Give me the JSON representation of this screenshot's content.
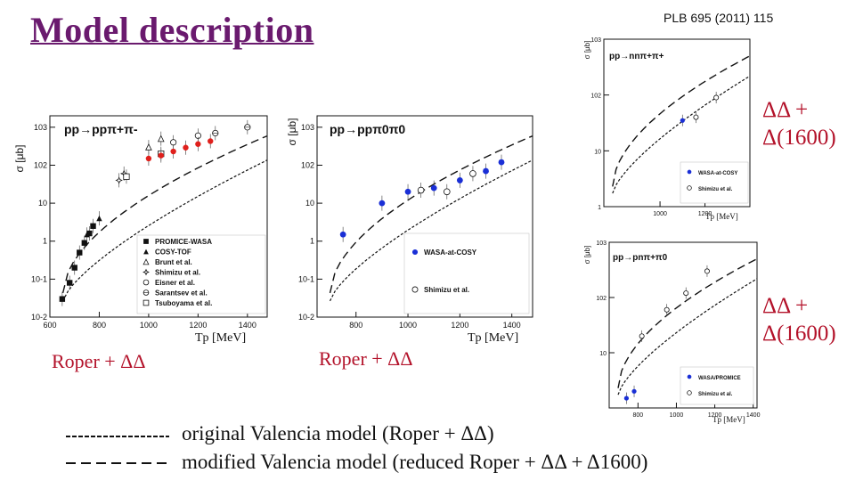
{
  "slide": {
    "title": "Model description",
    "reference": "PLB 695 (2011) 115",
    "caption_left": "Roper + ΔΔ",
    "caption_middle": "Roper + ΔΔ",
    "side_label_top": [
      "ΔΔ  +",
      "Δ(1600)"
    ],
    "side_label_bottom": [
      "ΔΔ  +",
      "Δ(1600)"
    ],
    "legend": [
      {
        "style": "dashed-fine",
        "text": "original Valencia model  (Roper + ΔΔ)"
      },
      {
        "style": "dashed-coarse",
        "text": "modified Valencia model (reduced Roper + ΔΔ + Δ1600)"
      }
    ],
    "colors": {
      "title": "#6a1a6e",
      "caption": "#b3122a",
      "data_blue": "#1a2fd6",
      "data_red": "#e0201c"
    }
  },
  "chart_data": [
    {
      "type": "scatter",
      "reaction": "pp→ppπ+π-",
      "ylabel": "σ [μb]",
      "xlabel": "Tp  [MeV]",
      "xticks": [
        "600",
        "800",
        "1000",
        "1200",
        "1400"
      ],
      "yticks": [
        "10-2",
        "10-1",
        "1",
        "10",
        "102",
        "103"
      ],
      "xlim": [
        600,
        1480
      ],
      "ylim": [
        0.01,
        2000
      ],
      "yscale": "log",
      "legend_position": "bottom-right",
      "series": [
        {
          "name": "PROMICE-WASA",
          "marker": "square-filled",
          "x": [
            650,
            680,
            700,
            720,
            740,
            760,
            775
          ],
          "y": [
            0.03,
            0.08,
            0.2,
            0.5,
            0.9,
            1.6,
            2.5
          ]
        },
        {
          "name": "COSY-TOF",
          "marker": "triangle-filled",
          "x": [
            750,
            800
          ],
          "y": [
            1.5,
            4
          ]
        },
        {
          "name": "Brunt et al.",
          "marker": "triangle-open",
          "x": [
            1000,
            1050
          ],
          "y": [
            300,
            500
          ]
        },
        {
          "name": "Shimizu et al.",
          "marker": "star-open",
          "x": [
            880,
            900
          ],
          "y": [
            40,
            60
          ]
        },
        {
          "name": "Eisner et al.",
          "marker": "circle-open",
          "x": [
            1100,
            1200
          ],
          "y": [
            400,
            600
          ]
        },
        {
          "name": "Sarantsev et al.",
          "marker": "circle-cross-open",
          "x": [
            1270,
            1400
          ],
          "y": [
            700,
            1000
          ]
        },
        {
          "name": "Tsuboyama et al.",
          "marker": "square-open",
          "x": [
            910,
            1050
          ],
          "y": [
            50,
            200
          ]
        },
        {
          "name": "",
          "marker": "circle-red",
          "x": [
            1000,
            1050,
            1100,
            1150,
            1200,
            1250
          ],
          "y": [
            150,
            180,
            230,
            290,
            360,
            430
          ]
        }
      ]
    },
    {
      "type": "scatter",
      "reaction": "pp→ppπ0π0",
      "ylabel": "σ [μb]",
      "xlabel": "Tp  [MeV]",
      "xticks": [
        "800",
        "1000",
        "1200",
        "1400"
      ],
      "yticks": [
        "10-2",
        "10-1",
        "1",
        "10",
        "102",
        "103"
      ],
      "xlim": [
        650,
        1480
      ],
      "ylim": [
        0.01,
        2000
      ],
      "yscale": "log",
      "legend_position": "bottom-right",
      "series": [
        {
          "name": "WASA-at-COSY",
          "marker": "circle-filled-blue",
          "x": [
            750,
            900,
            1000,
            1100,
            1200,
            1300,
            1360
          ],
          "y": [
            1.5,
            10,
            20,
            25,
            40,
            70,
            120
          ]
        },
        {
          "name": "Shimizu et al.",
          "marker": "circle-open",
          "x": [
            1050,
            1150,
            1250
          ],
          "y": [
            22,
            20,
            60
          ]
        }
      ]
    },
    {
      "type": "scatter",
      "reaction": "pp→nnπ+π+",
      "ylabel": "σ [μb]",
      "xlabel": "Tp  [MeV]",
      "xticks": [
        "1000",
        "1200"
      ],
      "yticks": [
        "1",
        "10",
        "102",
        "103"
      ],
      "xlim": [
        750,
        1400
      ],
      "ylim": [
        1,
        1000
      ],
      "yscale": "log",
      "legend_position": "bottom-right",
      "series": [
        {
          "name": "WASA-at-COSY",
          "marker": "circle-filled-blue",
          "x": [
            1100
          ],
          "y": [
            35
          ]
        },
        {
          "name": "Shimizu et al.",
          "marker": "circle-open",
          "x": [
            1160,
            1250
          ],
          "y": [
            40,
            90
          ]
        }
      ]
    },
    {
      "type": "scatter",
      "reaction": "pp→pnπ+π0",
      "ylabel": "σ [μb]",
      "xlabel": "Tp  [MeV]",
      "xticks": [
        "800",
        "1000",
        "1200",
        "1400"
      ],
      "yticks": [
        "10",
        "102",
        "103"
      ],
      "xlim": [
        650,
        1420
      ],
      "ylim": [
        1,
        1000
      ],
      "yscale": "log",
      "legend_position": "bottom-right",
      "series": [
        {
          "name": "WASA/PROMICE",
          "marker": "circle-filled-blue",
          "x": [
            740,
            780
          ],
          "y": [
            1.5,
            2
          ]
        },
        {
          "name": "Shimizu et al.",
          "marker": "circle-open",
          "x": [
            820,
            950,
            1050,
            1160
          ],
          "y": [
            20,
            60,
            120,
            300
          ]
        }
      ]
    }
  ]
}
